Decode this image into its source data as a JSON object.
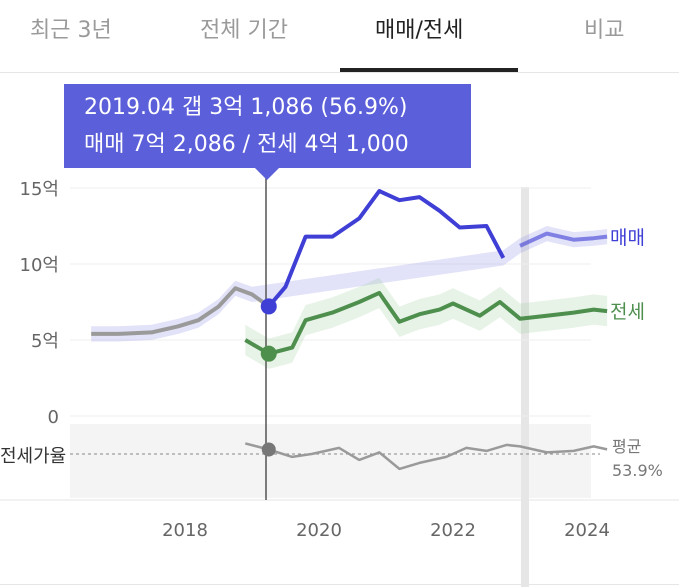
{
  "tabs": [
    {
      "label": "최근 3년",
      "active": false
    },
    {
      "label": "전체 기간",
      "active": false
    },
    {
      "label": "매매/전세",
      "active": true
    },
    {
      "label": "비교",
      "active": false
    }
  ],
  "tooltip": {
    "line1": "2019.04  갭 3억 1,086 (56.9%)",
    "line2": "매매 7억 2,086 / 전세 4억 1,000"
  },
  "colors": {
    "sale": "#3f3fd6",
    "jeonse": "#4e8f4e",
    "history": "#9a9a9a",
    "tooltip": "#5b5fd9"
  },
  "chart_data": {
    "type": "line",
    "x_ticks": [
      "2018",
      "2020",
      "2022",
      "2024"
    ],
    "y_ticks": [
      "0",
      "5억",
      "10억",
      "15억"
    ],
    "ylim": [
      0,
      15
    ],
    "y_unit": "억",
    "series": [
      {
        "name": "매매",
        "values": [
          [
            2016.6,
            5.4
          ],
          [
            2017.0,
            5.4
          ],
          [
            2017.5,
            5.5
          ],
          [
            2017.9,
            5.9
          ],
          [
            2018.2,
            6.3
          ],
          [
            2018.5,
            7.2
          ],
          [
            2018.75,
            8.4
          ],
          [
            2019.0,
            8.0
          ],
          [
            2019.25,
            7.21
          ],
          [
            2019.5,
            8.5
          ],
          [
            2019.8,
            11.8
          ],
          [
            2020.2,
            11.8
          ],
          [
            2020.6,
            13.0
          ],
          [
            2020.9,
            14.8
          ],
          [
            2021.2,
            14.2
          ],
          [
            2021.5,
            14.4
          ],
          [
            2021.8,
            13.5
          ],
          [
            2022.1,
            12.4
          ],
          [
            2022.5,
            12.5
          ],
          [
            2022.75,
            10.4
          ],
          [
            2023.0,
            11.2
          ],
          [
            2023.4,
            12.0
          ],
          [
            2023.8,
            11.6
          ],
          [
            2024.1,
            11.7
          ],
          [
            2024.3,
            11.8
          ]
        ]
      },
      {
        "name": "전세",
        "values": [
          [
            2018.9,
            5.0
          ],
          [
            2019.25,
            4.1
          ],
          [
            2019.6,
            4.5
          ],
          [
            2019.8,
            6.3
          ],
          [
            2020.2,
            6.8
          ],
          [
            2020.6,
            7.5
          ],
          [
            2020.9,
            8.1
          ],
          [
            2021.2,
            6.2
          ],
          [
            2021.5,
            6.7
          ],
          [
            2021.8,
            7.0
          ],
          [
            2022.0,
            7.4
          ],
          [
            2022.4,
            6.6
          ],
          [
            2022.7,
            7.5
          ],
          [
            2023.0,
            6.4
          ],
          [
            2023.4,
            6.6
          ],
          [
            2023.8,
            6.8
          ],
          [
            2024.1,
            7.0
          ],
          [
            2024.3,
            6.9
          ]
        ]
      },
      {
        "name": "전세가율",
        "values": [
          [
            2018.9,
            61
          ],
          [
            2019.25,
            56.9
          ],
          [
            2019.6,
            52
          ],
          [
            2019.9,
            54
          ],
          [
            2020.3,
            58
          ],
          [
            2020.6,
            50
          ],
          [
            2020.9,
            55
          ],
          [
            2021.2,
            44
          ],
          [
            2021.5,
            48
          ],
          [
            2021.9,
            52
          ],
          [
            2022.2,
            58
          ],
          [
            2022.5,
            56
          ],
          [
            2022.8,
            60
          ],
          [
            2023.0,
            59
          ],
          [
            2023.4,
            55
          ],
          [
            2023.8,
            56
          ],
          [
            2024.1,
            59
          ],
          [
            2024.3,
            57
          ]
        ]
      }
    ],
    "labels": {
      "sale": "매매",
      "jeonse": "전세",
      "ratio": "전세가율"
    },
    "average": {
      "label": "평균",
      "value": "53.9%"
    }
  }
}
